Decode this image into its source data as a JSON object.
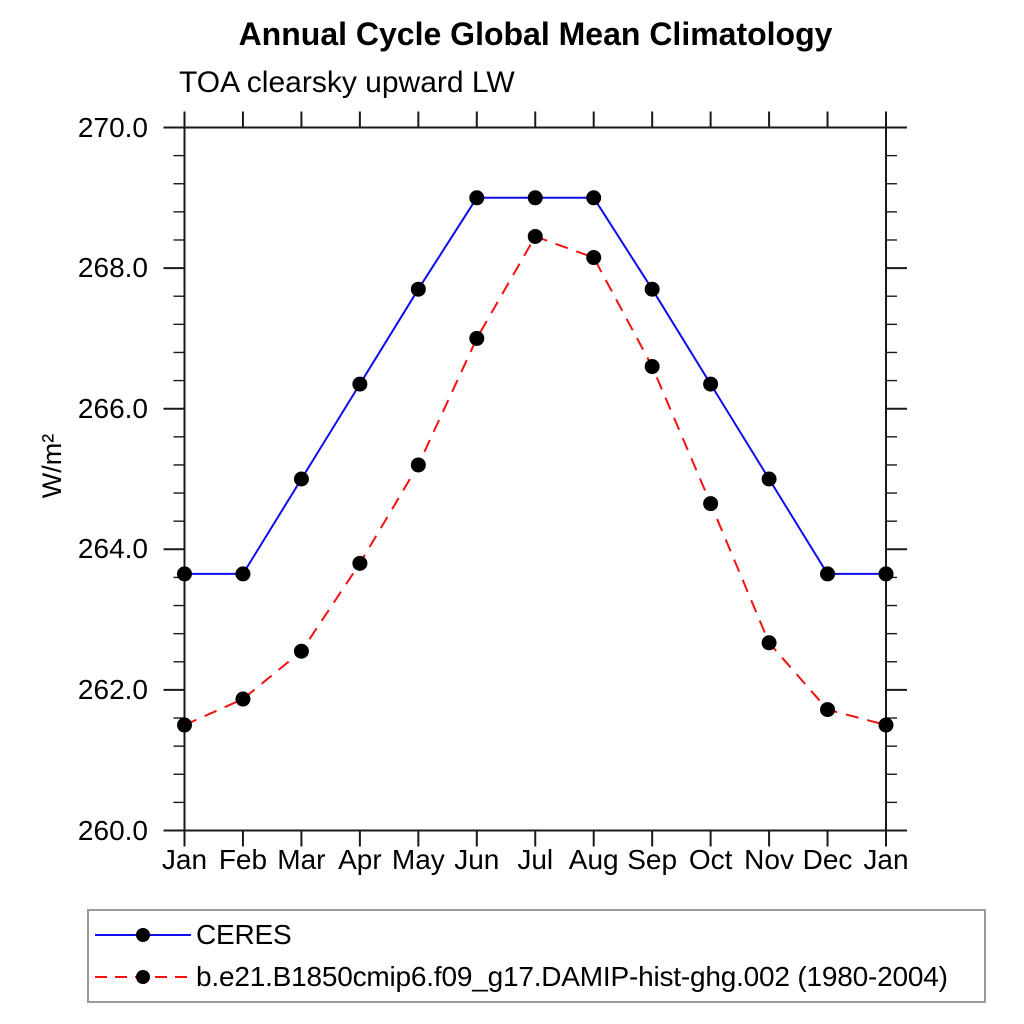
{
  "page": {
    "background": "#ffffff",
    "frame_color": "#1a1a1a"
  },
  "chart_data": {
    "type": "line",
    "title": "Annual Cycle Global Mean Climatology",
    "subtitle": "TOA clearsky upward LW",
    "ylabel": "W/m²",
    "categories": [
      "Jan",
      "Feb",
      "Mar",
      "Apr",
      "May",
      "Jun",
      "Jul",
      "Aug",
      "Sep",
      "Oct",
      "Nov",
      "Dec",
      "Jan"
    ],
    "ylim": [
      260.0,
      270.0
    ],
    "ytick_values": [
      260.0,
      262.0,
      264.0,
      266.0,
      268.0,
      270.0
    ],
    "ytick_labels": [
      "260.0",
      "262.0",
      "264.0",
      "266.0",
      "268.0",
      "270.0"
    ],
    "minor_tick_step": 0.4,
    "grid": false,
    "legend_position": "bottom-left-box",
    "series": [
      {
        "name": "CERES",
        "color": "#0d0dee",
        "line_style": "solid",
        "marker": "filled-circle",
        "marker_color": "#000000",
        "values": [
          263.65,
          263.65,
          265.0,
          266.35,
          267.7,
          269.0,
          269.0,
          269.0,
          267.7,
          266.35,
          265.0,
          263.65,
          263.65
        ]
      },
      {
        "name": "b.e21.B1850cmip6.f09_g17.DAMIP-hist-ghg.002 (1980-2004)",
        "color": "#f21111",
        "line_style": "dashed",
        "marker": "filled-circle",
        "marker_color": "#000000",
        "values": [
          261.5,
          261.87,
          262.55,
          263.8,
          265.2,
          267.0,
          268.45,
          268.15,
          266.6,
          264.65,
          262.67,
          261.72,
          261.5
        ]
      }
    ]
  }
}
